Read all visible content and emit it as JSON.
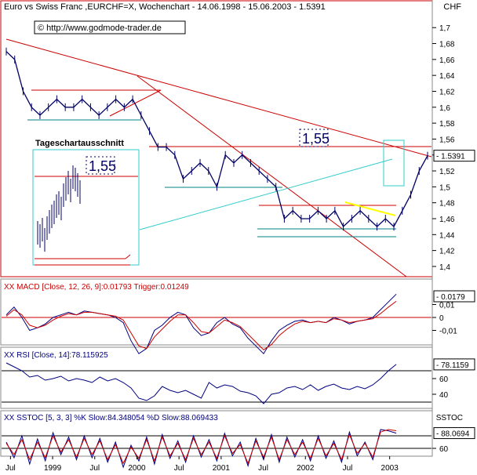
{
  "header": {
    "title": "Euro vs Swiss Franc ,EURCHF=X, Wochenchart - 14.06.1998 - 15.06.2003 - 1.5391",
    "currency": "CHF",
    "url": "© http://www.godmode-trader.de",
    "inset_title": "Tageschartausschnitt",
    "target_label": "1,55",
    "inset_target_label": "1,55"
  },
  "colors": {
    "frame": "#cc0000",
    "price": "#000066",
    "trendline": "#cc0000",
    "support": "#008080",
    "cyan": "#33cccc",
    "yellow": "#ffff00",
    "macd_line": "#000080",
    "trigger_line": "#cc0000"
  },
  "chart_data": [
    {
      "type": "line",
      "panel": "price",
      "series": [
        {
          "name": "EURCHF=X",
          "x": [
            1998.45,
            1998.55,
            1998.65,
            1998.75,
            1998.85,
            1998.95,
            1999.05,
            1999.15,
            1999.25,
            1999.35,
            1999.45,
            1999.55,
            1999.65,
            1999.75,
            1999.85,
            1999.95,
            2000.05,
            2000.15,
            2000.25,
            2000.35,
            2000.45,
            2000.55,
            2000.65,
            2000.75,
            2000.85,
            2000.95,
            2001.05,
            2001.15,
            2001.25,
            2001.35,
            2001.45,
            2001.55,
            2001.65,
            2001.75,
            2001.85,
            2001.95,
            2002.05,
            2002.15,
            2002.25,
            2002.35,
            2002.45,
            2002.55,
            2002.65,
            2002.75,
            2002.85,
            2002.95,
            2003.05,
            2003.15,
            2003.25,
            2003.35,
            2003.45
          ],
          "values": [
            1.67,
            1.66,
            1.62,
            1.6,
            1.59,
            1.6,
            1.61,
            1.6,
            1.6,
            1.61,
            1.6,
            1.59,
            1.6,
            1.61,
            1.6,
            1.61,
            1.59,
            1.57,
            1.55,
            1.55,
            1.54,
            1.51,
            1.52,
            1.53,
            1.52,
            1.5,
            1.54,
            1.53,
            1.54,
            1.53,
            1.52,
            1.51,
            1.5,
            1.46,
            1.47,
            1.46,
            1.46,
            1.47,
            1.46,
            1.47,
            1.45,
            1.46,
            1.47,
            1.46,
            1.45,
            1.46,
            1.45,
            1.47,
            1.49,
            1.52,
            1.5391
          ]
        }
      ],
      "y_ticks": [
        "1,7",
        "1,68",
        "1,66",
        "1,64",
        "1,62",
        "1,6",
        "1,58",
        "1,56",
        "1,54",
        "1,52",
        "1,5",
        "1,48",
        "1,46",
        "1,44",
        "1,42",
        "1,4"
      ],
      "ylim": [
        1.395,
        1.715
      ],
      "last_value_label": "1.5391",
      "grid": false
    },
    {
      "type": "line",
      "panel": "macd",
      "title": "XX MACD [Close, 12, 26, 9]:0.01793 Trigger:0.01249",
      "series": [
        {
          "name": "MACD",
          "values": [
            0.002,
            0.008,
            0.0,
            -0.01,
            -0.008,
            -0.005,
            0.0,
            0.002,
            0.004,
            0.002,
            0.005,
            0.004,
            0.003,
            0.002,
            0.0,
            -0.004,
            -0.018,
            -0.028,
            -0.024,
            -0.01,
            -0.006,
            0.0,
            0.004,
            0.002,
            -0.008,
            -0.014,
            -0.012,
            -0.004,
            0.0,
            -0.005,
            -0.008,
            -0.016,
            -0.022,
            -0.028,
            -0.018,
            -0.01,
            -0.006,
            -0.003,
            -0.002,
            -0.004,
            -0.003,
            -0.004,
            0.0,
            -0.002,
            -0.005,
            -0.003,
            -0.002,
            0.0,
            0.006,
            0.012,
            0.018
          ]
        },
        {
          "name": "Trigger",
          "values": [
            0.001,
            0.006,
            0.002,
            -0.006,
            -0.008,
            -0.006,
            -0.002,
            0.001,
            0.003,
            0.002,
            0.004,
            0.004,
            0.003,
            0.002,
            0.001,
            -0.002,
            -0.012,
            -0.022,
            -0.024,
            -0.015,
            -0.009,
            -0.003,
            0.002,
            0.002,
            -0.004,
            -0.011,
            -0.012,
            -0.007,
            -0.002,
            -0.004,
            -0.007,
            -0.013,
            -0.019,
            -0.025,
            -0.021,
            -0.014,
            -0.009,
            -0.005,
            -0.003,
            -0.004,
            -0.003,
            -0.004,
            -0.001,
            -0.002,
            -0.004,
            -0.003,
            -0.002,
            -0.001,
            0.003,
            0.008,
            0.0125
          ]
        }
      ],
      "y_ticks": [
        "0,01",
        "0",
        "-0,01"
      ],
      "ylim": [
        -0.02,
        0.02
      ],
      "last_value_label": "0.0179"
    },
    {
      "type": "line",
      "panel": "rsi",
      "title": "XX RSI [Close, 14]:78.115925",
      "series": [
        {
          "name": "RSI",
          "values": [
            80,
            75,
            70,
            62,
            64,
            58,
            60,
            63,
            57,
            60,
            58,
            55,
            62,
            57,
            60,
            55,
            48,
            35,
            32,
            38,
            50,
            45,
            42,
            45,
            40,
            35,
            55,
            48,
            52,
            50,
            44,
            42,
            38,
            28,
            40,
            42,
            48,
            50,
            46,
            52,
            45,
            50,
            53,
            48,
            46,
            50,
            47,
            52,
            60,
            70,
            78.1
          ]
        }
      ],
      "y_ticks": [
        "60",
        "40"
      ],
      "ylim": [
        25,
        85
      ],
      "last_value_label": "78.1159"
    },
    {
      "type": "line",
      "panel": "sstoc",
      "title": "XX SSTOC [5, 3, 3] %K Slow:84.348054 %D Slow:88.069433",
      "series": [
        {
          "name": "%K Slow",
          "values": [
            70,
            45,
            80,
            35,
            75,
            40,
            85,
            50,
            78,
            42,
            80,
            45,
            76,
            38,
            70,
            30,
            65,
            40,
            78,
            35,
            82,
            44,
            72,
            38,
            80,
            46,
            74,
            40,
            84,
            48,
            70,
            32,
            76,
            42,
            82,
            38,
            78,
            46,
            74,
            40,
            80,
            44,
            72,
            38,
            86,
            48,
            70,
            42,
            90,
            88,
            84.3
          ]
        },
        {
          "name": "%D Slow",
          "values": [
            68,
            50,
            74,
            42,
            70,
            45,
            80,
            54,
            74,
            46,
            76,
            50,
            72,
            42,
            66,
            36,
            62,
            44,
            74,
            40,
            78,
            48,
            68,
            42,
            76,
            50,
            70,
            44,
            80,
            52,
            66,
            36,
            72,
            46,
            78,
            42,
            74,
            50,
            70,
            44,
            76,
            48,
            68,
            42,
            82,
            52,
            68,
            46,
            86,
            90,
            88.1
          ]
        }
      ],
      "y_ticks": [
        "60"
      ],
      "ylim": [
        50,
        100
      ],
      "currency": "SSTOC",
      "last_value_label": "88.0694"
    }
  ],
  "x_axis": {
    "labels": [
      "Jul",
      "1999",
      "Jul",
      "2000",
      "Jul",
      "2001",
      "Jul",
      "2002",
      "Jul",
      "2003"
    ],
    "years": [
      1998.5,
      1999.0,
      1999.5,
      2000.0,
      2000.5,
      2001.0,
      2001.5,
      2002.0,
      2002.5,
      2003.0
    ]
  }
}
